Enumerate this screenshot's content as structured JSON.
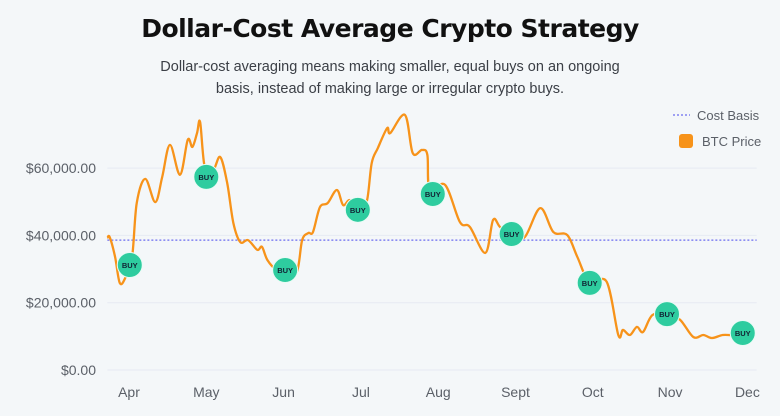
{
  "chart_data": {
    "type": "line",
    "title": "Dollar-Cost Average Crypto Strategy",
    "subtitle": "Dollar-cost averaging means making smaller, equal buys on an ongoing basis, instead of making large or irregular crypto buys.",
    "xlabel": "",
    "ylabel": "",
    "x_tick_labels": [
      "Apr",
      "May",
      "Jun",
      "Jul",
      "Aug",
      "Sept",
      "Oct",
      "Nov",
      "Dec"
    ],
    "y_tick_labels": [
      "$0.00",
      "$20,000.00",
      "$40,000.00",
      "$60,000.00"
    ],
    "y_ticks": [
      0,
      20000,
      40000,
      60000
    ],
    "ylim": [
      0,
      80000
    ],
    "xlim": [
      -0.28,
      8.12
    ],
    "grid": true,
    "legend_position": "top-right",
    "legend": [
      "Cost Basis",
      "BTC Price"
    ],
    "cost_basis": 38600,
    "series": [
      {
        "name": "BTC Price",
        "color": "#f7931a",
        "x": [
          -0.28,
          -0.25,
          -0.18,
          -0.12,
          -0.05,
          0.04,
          0.1,
          0.21,
          0.34,
          0.43,
          0.53,
          0.66,
          0.76,
          0.82,
          0.88,
          0.92,
          0.98,
          1.09,
          1.18,
          1.27,
          1.35,
          1.44,
          1.54,
          1.66,
          1.72,
          1.79,
          1.91,
          2.02,
          2.17,
          2.24,
          2.32,
          2.38,
          2.47,
          2.57,
          2.69,
          2.77,
          2.86,
          2.99,
          3.08,
          3.14,
          3.22,
          3.34,
          3.38,
          3.57,
          3.67,
          3.79,
          3.86,
          3.89,
          4.09,
          4.28,
          4.41,
          4.61,
          4.71,
          4.8,
          4.95,
          5.12,
          5.32,
          5.49,
          5.67,
          5.8,
          5.96,
          6.18,
          6.33,
          6.39,
          6.48,
          6.57,
          6.65,
          6.77,
          6.96,
          7.13,
          7.3,
          7.43,
          7.54,
          7.68,
          7.81,
          7.94
        ],
        "y": [
          39200,
          39500,
          33600,
          25900,
          27300,
          33600,
          49600,
          56800,
          49900,
          57400,
          66900,
          58000,
          68400,
          66300,
          70400,
          73700,
          60300,
          59400,
          63300,
          55600,
          43700,
          38000,
          38600,
          35700,
          36600,
          32700,
          29700,
          29100,
          29100,
          38600,
          40700,
          41000,
          48400,
          49600,
          53500,
          49000,
          50500,
          47600,
          50500,
          61500,
          66000,
          71900,
          70400,
          75800,
          64500,
          65400,
          63900,
          53500,
          55000,
          44000,
          42500,
          34800,
          44600,
          42500,
          40100,
          39500,
          48100,
          41000,
          40100,
          33600,
          25900,
          26200,
          10400,
          11900,
          10400,
          12800,
          11300,
          16300,
          16900,
          14900,
          9800,
          10400,
          9500,
          10400,
          10400,
          11000
        ]
      }
    ],
    "buys": {
      "label": "BUY",
      "color": "#2ecc9f",
      "x": [
        0.01,
        1.0,
        2.02,
        2.96,
        3.93,
        4.95,
        5.96,
        6.96,
        7.94
      ],
      "y": [
        31200,
        57400,
        29700,
        47600,
        52300,
        40400,
        25900,
        16600,
        11000
      ]
    },
    "cost_basis_color": "#6b6bf0"
  }
}
